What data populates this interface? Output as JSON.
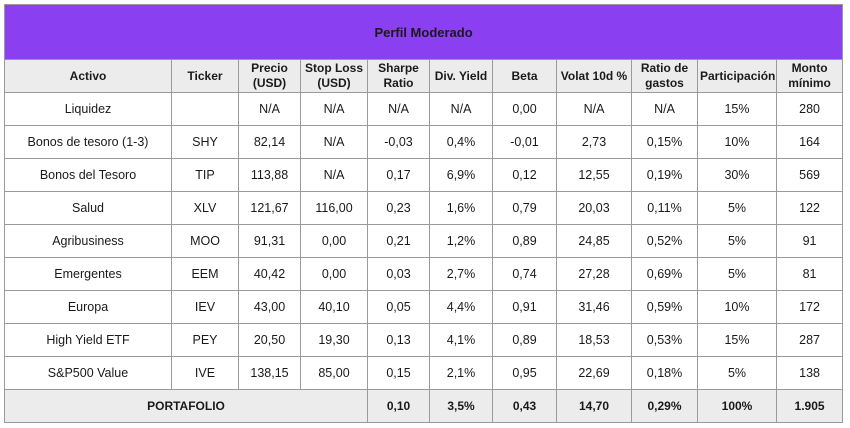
{
  "title": "Perfil Moderado",
  "headers": [
    "Activo",
    "Ticker",
    "Precio (USD)",
    "Stop Loss (USD)",
    "Sharpe Ratio",
    "Div. Yield",
    "Beta",
    "Volat 10d %",
    "Ratio de gastos",
    "Participación",
    "Monto mínimo"
  ],
  "rows": [
    [
      "Liquidez",
      "",
      "N/A",
      "N/A",
      "N/A",
      "N/A",
      "0,00",
      "N/A",
      "N/A",
      "15%",
      "280"
    ],
    [
      "Bonos de tesoro (1-3)",
      "SHY",
      "82,14",
      "N/A",
      "-0,03",
      "0,4%",
      "-0,01",
      "2,73",
      "0,15%",
      "10%",
      "164"
    ],
    [
      "Bonos del Tesoro",
      "TIP",
      "113,88",
      "N/A",
      "0,17",
      "6,9%",
      "0,12",
      "12,55",
      "0,19%",
      "30%",
      "569"
    ],
    [
      "Salud",
      "XLV",
      "121,67",
      "116,00",
      "0,23",
      "1,6%",
      "0,79",
      "20,03",
      "0,11%",
      "5%",
      "122"
    ],
    [
      "Agribusiness",
      "MOO",
      "91,31",
      "0,00",
      "0,21",
      "1,2%",
      "0,89",
      "24,85",
      "0,52%",
      "5%",
      "91"
    ],
    [
      "Emergentes",
      "EEM",
      "40,42",
      "0,00",
      "0,03",
      "2,7%",
      "0,74",
      "27,28",
      "0,69%",
      "5%",
      "81"
    ],
    [
      "Europa",
      "IEV",
      "43,00",
      "40,10",
      "0,05",
      "4,4%",
      "0,91",
      "31,46",
      "0,59%",
      "10%",
      "172"
    ],
    [
      "High Yield ETF",
      "PEY",
      "20,50",
      "19,30",
      "0,13",
      "4,1%",
      "0,89",
      "18,53",
      "0,53%",
      "15%",
      "287"
    ],
    [
      "S&P500 Value",
      "IVE",
      "138,15",
      "85,00",
      "0,15",
      "2,1%",
      "0,95",
      "22,69",
      "0,18%",
      "5%",
      "138"
    ]
  ],
  "total": {
    "label": "PORTAFOLIO",
    "sharpe": "0,10",
    "div_yield": "3,5%",
    "beta": "0,43",
    "volat": "14,70",
    "gastos": "0,29%",
    "participacion": "100%",
    "monto": "1.905"
  },
  "colors": {
    "title_bg": "#8a3ff0",
    "header_bg": "#ececec",
    "border": "#9a9a9a"
  }
}
